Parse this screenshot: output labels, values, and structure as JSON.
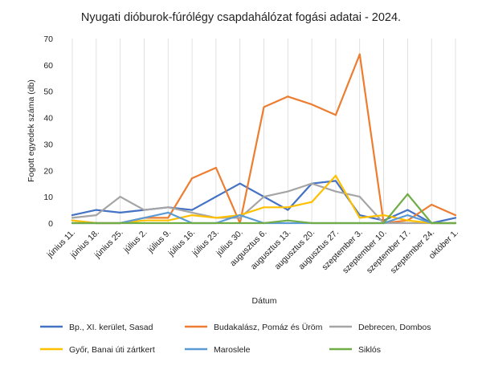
{
  "chart_data": {
    "type": "line",
    "title": "Nyugati dióburok-fúrólégy csapdahálózat fogási adatai - 2024.",
    "xlabel": "Dátum",
    "ylabel": "Fogott egyedek száma (db)",
    "ylim": [
      0,
      70
    ],
    "yticks": [
      0,
      10,
      20,
      30,
      40,
      50,
      60,
      70
    ],
    "grid": "vertical",
    "legend_position": "bottom",
    "categories": [
      "június 11.",
      "június 18.",
      "június 25.",
      "július 2.",
      "július 9.",
      "július 16.",
      "július 23.",
      "július 30.",
      "augusztus 6.",
      "augusztus 13.",
      "augusztus 20.",
      "augusztus 27.",
      "szeptember 3.",
      "szeptember 10.",
      "szeptember 17.",
      "szeptember 24.",
      "október 1."
    ],
    "series": [
      {
        "name": "Bp., XI. kerület, Sasad",
        "color": "#4472c4",
        "values": [
          3,
          5,
          4,
          5,
          6,
          5,
          10,
          15,
          10,
          5,
          15,
          16,
          3,
          1,
          5,
          0,
          2
        ]
      },
      {
        "name": "Budakalász, Pomáz és Üröm",
        "color": "#ed7d31",
        "values": [
          1,
          0,
          0,
          2,
          2,
          17,
          21,
          0,
          44,
          48,
          45,
          41,
          64,
          0,
          1,
          7,
          3
        ]
      },
      {
        "name": "Debrecen, Dombos",
        "color": "#a5a5a5",
        "values": [
          2,
          3,
          10,
          5,
          6,
          4,
          2,
          2,
          10,
          12,
          15,
          12,
          10,
          0,
          0,
          0,
          0
        ]
      },
      {
        "name": "Győr, Banai úti zártkert",
        "color": "#ffc000",
        "values": [
          1,
          0,
          0,
          1,
          1,
          3,
          2,
          3,
          6,
          6,
          8,
          18,
          2,
          3,
          1,
          0,
          0
        ]
      },
      {
        "name": "Maroslele",
        "color": "#5b9bd5",
        "values": [
          0,
          0,
          0,
          2,
          4,
          0,
          0,
          3,
          0,
          0,
          0,
          0,
          0,
          0,
          3,
          0,
          0
        ]
      },
      {
        "name": "Siklós",
        "color": "#70ad47",
        "values": [
          0,
          0,
          0,
          0,
          0,
          0,
          0,
          0,
          0,
          1,
          0,
          0,
          0,
          0,
          11,
          0,
          0
        ]
      }
    ]
  }
}
